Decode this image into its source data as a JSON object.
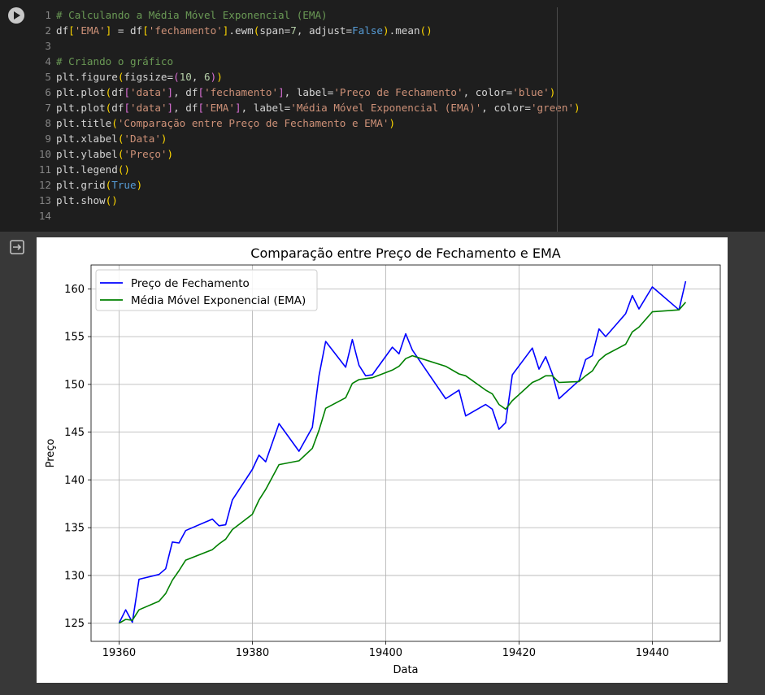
{
  "code": {
    "lines": [
      {
        "n": "1",
        "tokens": [
          {
            "t": "# Calculando a Média Móvel Exponencial (EMA)",
            "c": "comment"
          }
        ]
      },
      {
        "n": "2",
        "tokens": [
          {
            "t": "df",
            "c": ""
          },
          {
            "t": "[",
            "c": "p1"
          },
          {
            "t": "'EMA'",
            "c": "str"
          },
          {
            "t": "]",
            "c": "p1"
          },
          {
            "t": " = df",
            "c": ""
          },
          {
            "t": "[",
            "c": "p1"
          },
          {
            "t": "'fechamento'",
            "c": "str"
          },
          {
            "t": "]",
            "c": "p1"
          },
          {
            "t": ".ewm",
            "c": ""
          },
          {
            "t": "(",
            "c": "p1"
          },
          {
            "t": "span=",
            "c": ""
          },
          {
            "t": "7",
            "c": "num"
          },
          {
            "t": ", adjust=",
            "c": ""
          },
          {
            "t": "False",
            "c": "kw"
          },
          {
            "t": ")",
            "c": "p1"
          },
          {
            "t": ".mean",
            "c": ""
          },
          {
            "t": "()",
            "c": "p1"
          }
        ]
      },
      {
        "n": "3",
        "tokens": []
      },
      {
        "n": "4",
        "tokens": [
          {
            "t": "# Criando o gráfico",
            "c": "comment"
          }
        ]
      },
      {
        "n": "5",
        "tokens": [
          {
            "t": "plt.figure",
            "c": ""
          },
          {
            "t": "(",
            "c": "p1"
          },
          {
            "t": "figsize=",
            "c": ""
          },
          {
            "t": "(",
            "c": "p2"
          },
          {
            "t": "10",
            "c": "num"
          },
          {
            "t": ", ",
            "c": ""
          },
          {
            "t": "6",
            "c": "num"
          },
          {
            "t": ")",
            "c": "p2"
          },
          {
            "t": ")",
            "c": "p1"
          }
        ]
      },
      {
        "n": "6",
        "tokens": [
          {
            "t": "plt.plot",
            "c": ""
          },
          {
            "t": "(",
            "c": "p1"
          },
          {
            "t": "df",
            "c": ""
          },
          {
            "t": "[",
            "c": "p2"
          },
          {
            "t": "'data'",
            "c": "str"
          },
          {
            "t": "]",
            "c": "p2"
          },
          {
            "t": ", df",
            "c": ""
          },
          {
            "t": "[",
            "c": "p2"
          },
          {
            "t": "'fechamento'",
            "c": "str"
          },
          {
            "t": "]",
            "c": "p2"
          },
          {
            "t": ", label=",
            "c": ""
          },
          {
            "t": "'Preço de Fechamento'",
            "c": "str"
          },
          {
            "t": ", color=",
            "c": ""
          },
          {
            "t": "'blue'",
            "c": "str"
          },
          {
            "t": ")",
            "c": "p1"
          }
        ]
      },
      {
        "n": "7",
        "tokens": [
          {
            "t": "plt.plot",
            "c": ""
          },
          {
            "t": "(",
            "c": "p1"
          },
          {
            "t": "df",
            "c": ""
          },
          {
            "t": "[",
            "c": "p2"
          },
          {
            "t": "'data'",
            "c": "str"
          },
          {
            "t": "]",
            "c": "p2"
          },
          {
            "t": ", df",
            "c": ""
          },
          {
            "t": "[",
            "c": "p2"
          },
          {
            "t": "'EMA'",
            "c": "str"
          },
          {
            "t": "]",
            "c": "p2"
          },
          {
            "t": ", label=",
            "c": ""
          },
          {
            "t": "'Média Móvel Exponencial (EMA)'",
            "c": "str"
          },
          {
            "t": ", color=",
            "c": ""
          },
          {
            "t": "'green'",
            "c": "str"
          },
          {
            "t": ")",
            "c": "p1"
          }
        ]
      },
      {
        "n": "8",
        "tokens": [
          {
            "t": "plt.title",
            "c": ""
          },
          {
            "t": "(",
            "c": "p1"
          },
          {
            "t": "'Comparação entre Preço de Fechamento e EMA'",
            "c": "str"
          },
          {
            "t": ")",
            "c": "p1"
          }
        ]
      },
      {
        "n": "9",
        "tokens": [
          {
            "t": "plt.xlabel",
            "c": ""
          },
          {
            "t": "(",
            "c": "p1"
          },
          {
            "t": "'Data'",
            "c": "str"
          },
          {
            "t": ")",
            "c": "p1"
          }
        ]
      },
      {
        "n": "10",
        "tokens": [
          {
            "t": "plt.ylabel",
            "c": ""
          },
          {
            "t": "(",
            "c": "p1"
          },
          {
            "t": "'Preço'",
            "c": "str"
          },
          {
            "t": ")",
            "c": "p1"
          }
        ]
      },
      {
        "n": "11",
        "tokens": [
          {
            "t": "plt.legend",
            "c": ""
          },
          {
            "t": "()",
            "c": "p1"
          }
        ]
      },
      {
        "n": "12",
        "tokens": [
          {
            "t": "plt.grid",
            "c": ""
          },
          {
            "t": "(",
            "c": "p1"
          },
          {
            "t": "True",
            "c": "kw"
          },
          {
            "t": ")",
            "c": "p1"
          }
        ]
      },
      {
        "n": "13",
        "tokens": [
          {
            "t": "plt.show",
            "c": ""
          },
          {
            "t": "()",
            "c": "p1"
          }
        ]
      },
      {
        "n": "14",
        "tokens": []
      }
    ]
  },
  "icons": {
    "run": "play-circle-icon",
    "output": "output-redirect-icon"
  },
  "colors": {
    "editor_bg": "#1e1e1e",
    "output_bg": "#383838",
    "close_series": "#0000ff",
    "ema_series": "#008000",
    "grid": "#b0b0b0"
  },
  "chart_data": {
    "type": "line",
    "title": "Comparação entre Preço de Fechamento e EMA",
    "xlabel": "Data",
    "ylabel": "Preço",
    "xlim": [
      19355.8,
      19450.2
    ],
    "ylim": [
      123.1,
      162.5
    ],
    "xticks": [
      19360,
      19380,
      19400,
      19420,
      19440
    ],
    "yticks": [
      125,
      130,
      135,
      140,
      145,
      150,
      155,
      160
    ],
    "grid": true,
    "legend": "upper left",
    "series": [
      {
        "name": "Preço de Fechamento",
        "color": "#0000ff",
        "x": [
          19360,
          19361,
          19362,
          19363,
          19366,
          19367,
          19368,
          19369,
          19370,
          19374,
          19375,
          19376,
          19377,
          19380,
          19381,
          19382,
          19384,
          19387,
          19389,
          19390,
          19391,
          19394,
          19395,
          19396,
          19397,
          19398,
          19401,
          19402,
          19403,
          19404,
          19409,
          19411,
          19412,
          19415,
          19416,
          19417,
          19418,
          19419,
          19422,
          19423,
          19424,
          19425,
          19426,
          19429,
          19430,
          19431,
          19432,
          19433,
          19436,
          19437,
          19438,
          19440,
          19444,
          19445
        ],
        "y": [
          125.0,
          126.4,
          125.1,
          129.6,
          130.1,
          130.7,
          133.5,
          133.4,
          134.7,
          135.9,
          135.2,
          135.3,
          137.9,
          141.1,
          142.6,
          141.9,
          145.9,
          143.0,
          145.5,
          150.9,
          154.5,
          151.8,
          154.7,
          152.0,
          150.9,
          151.0,
          153.9,
          153.2,
          155.3,
          153.6,
          148.5,
          149.4,
          146.7,
          147.9,
          147.4,
          145.3,
          146.0,
          151.0,
          153.8,
          151.6,
          152.9,
          151.1,
          148.5,
          150.4,
          152.6,
          153.0,
          155.8,
          155.0,
          157.4,
          159.3,
          157.9,
          160.2,
          157.8,
          160.8
        ]
      },
      {
        "name": "Média Móvel Exponencial (EMA)",
        "color": "#008000",
        "x": [
          19360,
          19361,
          19362,
          19363,
          19366,
          19367,
          19368,
          19369,
          19370,
          19374,
          19375,
          19376,
          19377,
          19380,
          19381,
          19382,
          19384,
          19387,
          19389,
          19390,
          19391,
          19394,
          19395,
          19396,
          19397,
          19398,
          19401,
          19402,
          19403,
          19404,
          19409,
          19411,
          19412,
          19415,
          19416,
          19417,
          19418,
          19419,
          19422,
          19423,
          19424,
          19425,
          19426,
          19429,
          19430,
          19431,
          19432,
          19433,
          19436,
          19437,
          19438,
          19440,
          19444,
          19445
        ],
        "y": [
          125.0,
          125.4,
          125.3,
          126.4,
          127.3,
          128.1,
          129.5,
          130.5,
          131.6,
          132.7,
          133.3,
          133.8,
          134.8,
          136.4,
          137.9,
          139.0,
          141.6,
          142.0,
          143.3,
          145.2,
          147.5,
          148.6,
          150.1,
          150.5,
          150.6,
          150.7,
          151.5,
          151.9,
          152.7,
          153.0,
          151.9,
          151.1,
          150.9,
          149.4,
          149.0,
          147.9,
          147.4,
          148.3,
          150.2,
          150.5,
          150.9,
          150.9,
          150.2,
          150.3,
          150.9,
          151.4,
          152.5,
          153.1,
          154.2,
          155.5,
          156.0,
          157.6,
          157.8,
          158.6
        ]
      }
    ]
  }
}
